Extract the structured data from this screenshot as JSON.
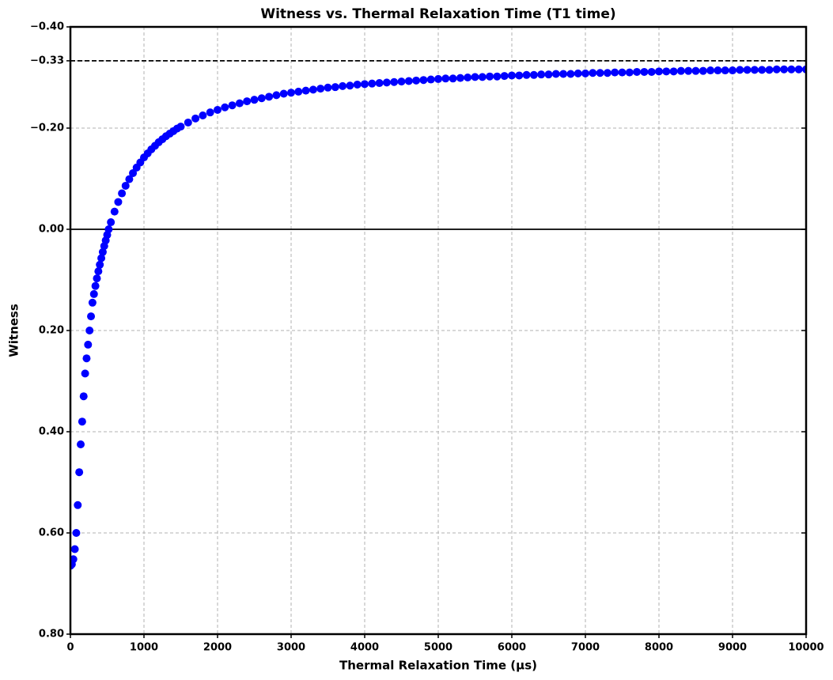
{
  "chart_data": {
    "type": "scatter",
    "title": "Witness vs. Thermal Relaxation Time (T1 time)",
    "x_label": "Thermal Relaxation Time (μs)",
    "y_label": "Witness",
    "color": "#0000ff",
    "x": [
      0,
      20,
      40,
      60,
      80,
      100,
      120,
      140,
      160,
      180,
      200,
      220,
      240,
      260,
      280,
      300,
      320,
      340,
      360,
      380,
      400,
      420,
      440,
      460,
      480,
      500,
      520,
      550,
      600,
      650,
      700,
      750,
      800,
      850,
      900,
      950,
      1000,
      1050,
      1100,
      1150,
      1200,
      1250,
      1300,
      1350,
      1400,
      1450,
      1500,
      1600,
      1700,
      1800,
      1900,
      2000,
      2100,
      2200,
      2300,
      2400,
      2500,
      2600,
      2700,
      2800,
      2900,
      3000,
      3100,
      3200,
      3300,
      3400,
      3500,
      3600,
      3700,
      3800,
      3900,
      4000,
      4100,
      4200,
      4300,
      4400,
      4500,
      4600,
      4700,
      4800,
      4900,
      5000,
      5100,
      5200,
      5300,
      5400,
      5500,
      5600,
      5700,
      5800,
      5900,
      6000,
      6100,
      6200,
      6300,
      6400,
      6500,
      6600,
      6700,
      6800,
      6900,
      7000,
      7100,
      7200,
      7300,
      7400,
      7500,
      7600,
      7700,
      7800,
      7900,
      8000,
      8100,
      8200,
      8300,
      8400,
      8500,
      8600,
      8700,
      8800,
      8900,
      9000,
      9100,
      9200,
      9300,
      9400,
      9500,
      9600,
      9700,
      9800,
      9900,
      10000
    ],
    "values": [
      0.665,
      0.662,
      0.652,
      0.632,
      0.6,
      0.545,
      0.48,
      0.425,
      0.38,
      0.33,
      0.285,
      0.255,
      0.228,
      0.2,
      0.172,
      0.145,
      0.128,
      0.112,
      0.097,
      0.083,
      0.07,
      0.057,
      0.045,
      0.033,
      0.022,
      0.011,
      0.0,
      -0.014,
      -0.035,
      -0.054,
      -0.071,
      -0.086,
      -0.099,
      -0.111,
      -0.122,
      -0.132,
      -0.142,
      -0.15,
      -0.158,
      -0.165,
      -0.172,
      -0.178,
      -0.184,
      -0.189,
      -0.194,
      -0.199,
      -0.203,
      -0.211,
      -0.219,
      -0.225,
      -0.231,
      -0.236,
      -0.241,
      -0.245,
      -0.249,
      -0.253,
      -0.256,
      -0.259,
      -0.262,
      -0.265,
      -0.268,
      -0.27,
      -0.272,
      -0.274,
      -0.276,
      -0.278,
      -0.28,
      -0.281,
      -0.283,
      -0.284,
      -0.286,
      -0.287,
      -0.288,
      -0.289,
      -0.29,
      -0.291,
      -0.292,
      -0.293,
      -0.294,
      -0.295,
      -0.296,
      -0.297,
      -0.298,
      -0.298,
      -0.299,
      -0.3,
      -0.301,
      -0.301,
      -0.302,
      -0.302,
      -0.303,
      -0.304,
      -0.304,
      -0.305,
      -0.305,
      -0.306,
      -0.306,
      -0.307,
      -0.307,
      -0.307,
      -0.308,
      -0.308,
      -0.309,
      -0.309,
      -0.309,
      -0.31,
      -0.31,
      -0.31,
      -0.311,
      -0.311,
      -0.311,
      -0.312,
      -0.312,
      -0.312,
      -0.313,
      -0.313,
      -0.313,
      -0.313,
      -0.314,
      -0.314,
      -0.314,
      -0.314,
      -0.315,
      -0.315,
      -0.315,
      -0.315,
      -0.315,
      -0.316,
      -0.316,
      -0.316,
      -0.316,
      -0.316
    ],
    "xlim": [
      0,
      10000
    ],
    "xticks": [
      0,
      1000,
      2000,
      3000,
      4000,
      5000,
      6000,
      7000,
      8000,
      9000,
      10000
    ],
    "ylim": [
      -0.4,
      0.8
    ],
    "y_inverted": true,
    "yticks": [
      {
        "value": -0.4,
        "label": "−0.40"
      },
      {
        "value": -0.333,
        "label": "−0.33"
      },
      {
        "value": -0.2,
        "label": "−0.20"
      },
      {
        "value": 0,
        "label": "0.00"
      },
      {
        "value": 0.2,
        "label": "0.20"
      },
      {
        "value": 0.4,
        "label": "0.40"
      },
      {
        "value": 0.6,
        "label": "0.60"
      },
      {
        "value": 0.8,
        "label": "0.80"
      }
    ],
    "reference_lines": [
      {
        "value": -0.333,
        "style": "dashed"
      },
      {
        "value": 0,
        "style": "solid"
      }
    ],
    "grid": true
  }
}
